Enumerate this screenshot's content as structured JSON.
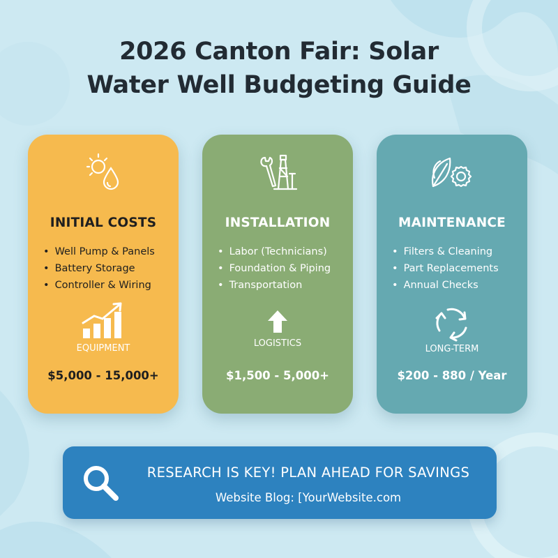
{
  "title": {
    "line1": "2026 Canton Fair: Solar",
    "line2": "Water Well Budgeting Guide"
  },
  "cards": [
    {
      "heading": "INITIAL COSTS",
      "icon": "sun-water-drop-icon",
      "bullets": [
        "Well Pump & Panels",
        "Battery Storage",
        "Controller & Wiring"
      ],
      "sub_icon": "growth-bar-chart-icon",
      "tag": "EQUIPMENT",
      "price": "$5,000 - 15,000+",
      "color": "#f6ba4e"
    },
    {
      "heading": "INSTALLATION",
      "icon": "wrench-drill-rig-icon",
      "bullets": [
        "Labor (Technicians)",
        "Foundation & Piping",
        "Transportation"
      ],
      "sub_icon": "up-arrow-icon",
      "tag": "LOGISTICS",
      "price": "$1,500 - 5,000+",
      "color": "#8aac74"
    },
    {
      "heading": "MAINTENANCE",
      "icon": "leaf-gear-icon",
      "bullets": [
        "Filters & Cleaning",
        "Part Replacements",
        "Annual Checks"
      ],
      "sub_icon": "recycle-arrows-icon",
      "tag": "LONG-TERM",
      "price": "$200 - 880 / Year",
      "color": "#65a9b1"
    }
  ],
  "banner": {
    "icon": "search-icon",
    "headline": "RESEARCH IS KEY! PLAN AHEAD FOR SAVINGS",
    "subline": "Website Blog: [YourWebsite.com",
    "color": "#2d82bf"
  }
}
